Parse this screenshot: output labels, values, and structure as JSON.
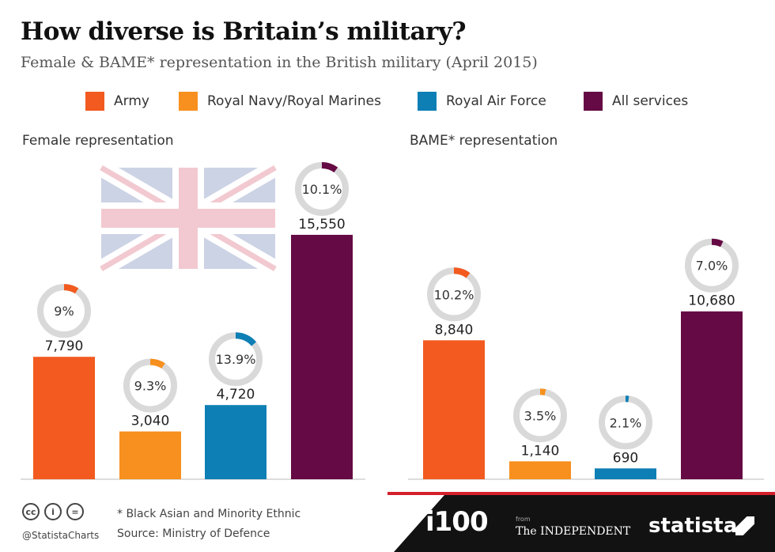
{
  "header": {
    "title": "How diverse is Britain’s military?",
    "subtitle": "Female & BAME* representation in the British military (April 2015)"
  },
  "legend": [
    {
      "label": "Army",
      "color": "#f25a1f"
    },
    {
      "label": "Royal Navy/Royal Marines",
      "color": "#f7901e"
    },
    {
      "label": "Royal Air Force",
      "color": "#0e7fb5"
    },
    {
      "label": "All services",
      "color": "#650a44"
    }
  ],
  "chart_data": [
    {
      "type": "bar",
      "title": "Female representation",
      "categories": [
        "Army",
        "Royal Navy/Royal Marines",
        "Royal Air Force",
        "All services"
      ],
      "values": [
        7790,
        3040,
        4720,
        15550
      ],
      "value_labels": [
        "7,790",
        "3,040",
        "4,720",
        "15,550"
      ],
      "percentages": [
        9,
        9.3,
        13.9,
        10.1
      ],
      "percentage_labels": [
        "9%",
        "9.3%",
        "13.9%",
        "10.1%"
      ],
      "colors": [
        "#f25a1f",
        "#f7901e",
        "#0e7fb5",
        "#650a44"
      ],
      "ylim": [
        0,
        16000
      ],
      "background_image": "union-jack-flag",
      "legend_position": "top"
    },
    {
      "type": "bar",
      "title": "BAME* representation",
      "categories": [
        "Army",
        "Royal Navy/Royal Marines",
        "Royal Air Force",
        "All services"
      ],
      "values": [
        8840,
        1140,
        690,
        10680
      ],
      "value_labels": [
        "8,840",
        "1,140",
        "690",
        "10,680"
      ],
      "percentages": [
        10.2,
        3.5,
        2.1,
        7.0
      ],
      "percentage_labels": [
        "10.2%",
        "3.5%",
        "2.1%",
        "7.0%"
      ],
      "colors": [
        "#f25a1f",
        "#f7901e",
        "#0e7fb5",
        "#650a44"
      ],
      "ylim": [
        0,
        16000
      ],
      "legend_position": "top"
    }
  ],
  "footer": {
    "cc_icons": [
      "cc-icon",
      "attribution-icon",
      "no-derivatives-icon"
    ],
    "handle": "@StatistaCharts",
    "note": "* Black Asian and Minority Ethnic",
    "source": "Source: Ministry of Defence",
    "i100_logo": "i100",
    "from": "from",
    "independent": "The INDEPENDENT",
    "statista": "statista"
  }
}
